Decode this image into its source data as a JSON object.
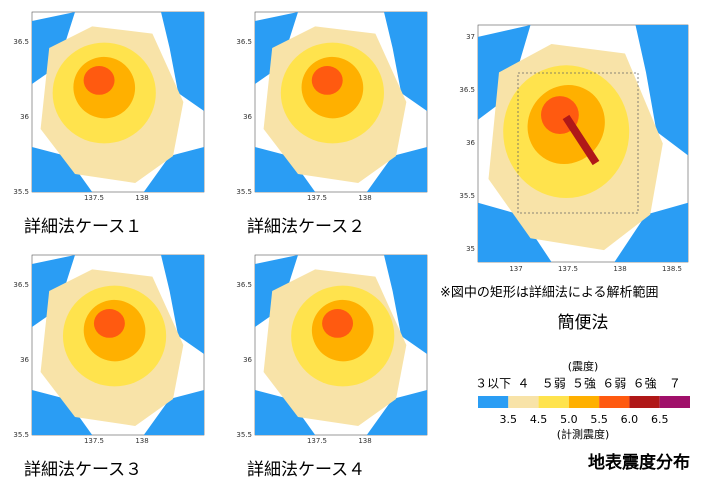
{
  "panels": [
    {
      "caption": "詳細法ケース１",
      "yticks": [
        "36.5",
        "36",
        "35.5"
      ],
      "xticks": [
        "137.5",
        "138"
      ]
    },
    {
      "caption": "詳細法ケース２",
      "yticks": [
        "36.5",
        "36",
        "35.5"
      ],
      "xticks": [
        "137.5",
        "138"
      ]
    },
    {
      "caption": "詳細法ケース３",
      "yticks": [
        "36.5",
        "36",
        "35.5"
      ],
      "xticks": [
        "137.5",
        "138"
      ]
    },
    {
      "caption": "詳細法ケース４",
      "yticks": [
        "36.5",
        "36",
        "35.5"
      ],
      "xticks": [
        "137.5",
        "138"
      ]
    }
  ],
  "simple": {
    "caption": "簡便法",
    "note": "※図中の矩形は詳細法による解析範囲",
    "yticks": [
      "37",
      "36.5",
      "36",
      "35.5",
      "35"
    ],
    "xticks": [
      "137",
      "137.5",
      "138",
      "138.5"
    ]
  },
  "legend": {
    "title": "(震度)",
    "classes": [
      {
        "label": "３以下",
        "color": "#2a9df4"
      },
      {
        "label": "４",
        "color": "#f8e3a8"
      },
      {
        "label": "５弱",
        "color": "#ffe34d"
      },
      {
        "label": "５強",
        "color": "#ffb000"
      },
      {
        "label": "６弱",
        "color": "#ff5a10"
      },
      {
        "label": "６強",
        "color": "#b01818"
      },
      {
        "label": "７",
        "color": "#a0106a"
      }
    ],
    "boundaries": [
      "3.5",
      "4.5",
      "5.0",
      "5.5",
      "6.0",
      "6.5"
    ],
    "subtitle": "(計測震度)"
  },
  "title": "地表震度分布"
}
